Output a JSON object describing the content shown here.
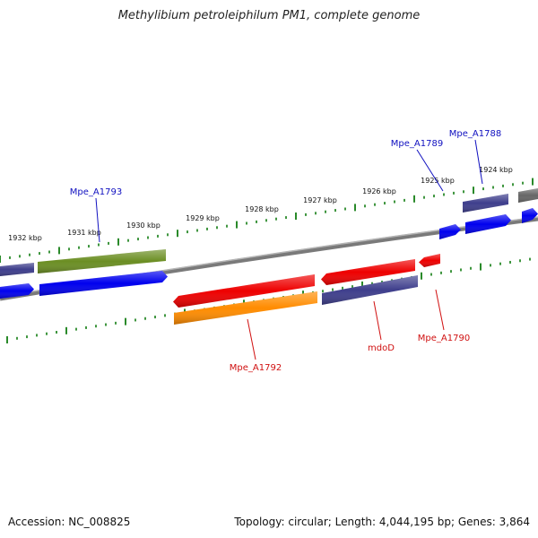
{
  "title": "Methylibium petroleiphilum PM1, complete genome",
  "footer": {
    "accession": "Accession: NC_008825",
    "topology": "Topology: circular; Length: 4,044,195 bp; Genes: 3,864"
  },
  "colors": {
    "backbone": "#7a7a7a",
    "tick": "#2a8a2a",
    "label_forward": "#1010c0",
    "label_reverse": "#d01010"
  },
  "scale": {
    "tick_labels": [
      "1932 kbp",
      "1931 kbp",
      "1930 kbp",
      "1929 kbp",
      "1928 kbp",
      "1927 kbp",
      "1926 kbp",
      "1925 kbp",
      "1924 kbp"
    ]
  },
  "genes": [
    {
      "track": "upper_outer",
      "color": "#3e3e8c",
      "strand": "forward"
    },
    {
      "track": "upper_outer",
      "color": "#6b8e23",
      "strand": "forward"
    },
    {
      "track": "upper_outer",
      "color": "#3e3e8c",
      "strand": "forward"
    },
    {
      "track": "upper_outer",
      "color": "#666666",
      "strand": "forward"
    },
    {
      "track": "upper_inner",
      "color": "#0000ee",
      "strand": "forward"
    },
    {
      "track": "upper_inner",
      "color": "#0000ee",
      "strand": "forward"
    },
    {
      "track": "upper_inner",
      "color": "#0000ee",
      "strand": "forward"
    },
    {
      "track": "upper_inner",
      "color": "#0000ee",
      "strand": "forward"
    },
    {
      "track": "upper_inner",
      "color": "#0000ee",
      "strand": "forward"
    },
    {
      "track": "lower_inner",
      "color": "#ee0000",
      "strand": "reverse"
    },
    {
      "track": "lower_inner",
      "color": "#ee0000",
      "strand": "reverse"
    },
    {
      "track": "lower_inner",
      "color": "#ee0000",
      "strand": "reverse"
    },
    {
      "track": "lower_outer",
      "color": "#ff8c00",
      "strand": "reverse"
    },
    {
      "track": "lower_outer",
      "color": "#3e3e8c",
      "strand": "reverse"
    }
  ],
  "gene_labels": [
    {
      "text": "Mpe_A1793",
      "strand": "forward"
    },
    {
      "text": "Mpe_A1789",
      "strand": "forward"
    },
    {
      "text": "Mpe_A1788",
      "strand": "forward"
    },
    {
      "text": "Mpe_A1792",
      "strand": "reverse"
    },
    {
      "text": "mdoD",
      "strand": "reverse"
    },
    {
      "text": "Mpe_A1790",
      "strand": "reverse"
    }
  ]
}
